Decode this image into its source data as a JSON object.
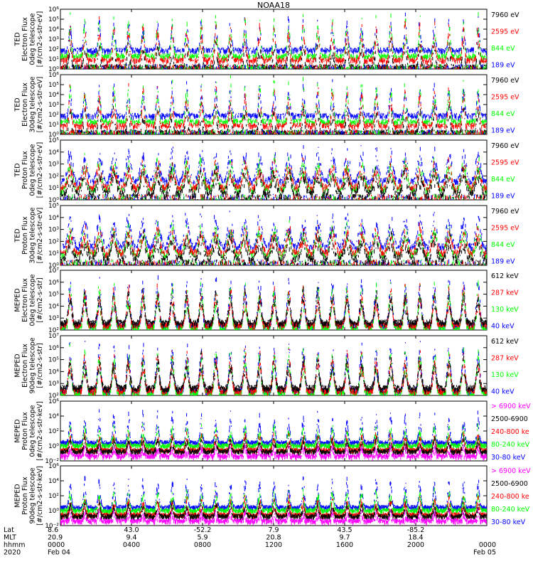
{
  "title": "NOAA18",
  "colors": {
    "black": "#000000",
    "blue": "#0000ff",
    "red": "#ff0000",
    "green": "#00ff00",
    "magenta": "#ff00ff"
  },
  "chart_data": {
    "type": "line",
    "x_start": "2020 Feb 04 0000",
    "x_end": "2020 Feb 05 0000",
    "x_unit": "hours",
    "xlim": [
      0,
      24
    ],
    "panels": [
      {
        "ylabel_lines": [
          "TED",
          "Electron Flux",
          "0deg telescope",
          "[#/cm2-s-str-eV]"
        ],
        "ylim_exp": [
          0,
          6
        ],
        "tick_labels": [
          "10⁰",
          "10¹",
          "10²",
          "10³",
          "10⁴",
          "10⁵",
          "10⁶"
        ],
        "legend": [
          {
            "label": "7960 eV",
            "color": "#000000"
          },
          {
            "label": "2595 eV",
            "color": "#ff0000"
          },
          {
            "label": "844 eV",
            "color": "#00ff00"
          },
          {
            "label": "189 eV",
            "color": "#0000ff"
          }
        ]
      },
      {
        "ylabel_lines": [
          "TED",
          "Electron Flux",
          "30deg telescope",
          "[#/cm2-s-str-eV]"
        ],
        "ylim_exp": [
          0,
          6
        ],
        "tick_labels": [
          "10⁰",
          "10¹",
          "10²",
          "10³",
          "10⁴",
          "10⁵",
          "10⁶"
        ],
        "legend": [
          {
            "label": "7960 eV",
            "color": "#000000"
          },
          {
            "label": "2595 eV",
            "color": "#ff0000"
          },
          {
            "label": "844 eV",
            "color": "#00ff00"
          },
          {
            "label": "189 eV",
            "color": "#0000ff"
          }
        ]
      },
      {
        "ylabel_lines": [
          "TED",
          "Proton Flux",
          "0deg telescope",
          "[#/cm2-s-str-eV]"
        ],
        "ylim_exp": [
          0,
          5
        ],
        "tick_labels": [
          "10⁰",
          "10¹",
          "10²",
          "10³",
          "10⁴",
          "10⁵"
        ],
        "legend": [
          {
            "label": "7960 eV",
            "color": "#000000"
          },
          {
            "label": "2595 eV",
            "color": "#ff0000"
          },
          {
            "label": "844 eV",
            "color": "#00ff00"
          },
          {
            "label": "189 eV",
            "color": "#0000ff"
          }
        ]
      },
      {
        "ylabel_lines": [
          "TED",
          "Proton Flux",
          "30deg telescope",
          "[#/cm2-s-str-eV]"
        ],
        "ylim_exp": [
          0,
          5
        ],
        "tick_labels": [
          "10⁰",
          "10¹",
          "10²",
          "10³",
          "10⁴",
          "10⁵"
        ],
        "legend": [
          {
            "label": "7960 eV",
            "color": "#000000"
          },
          {
            "label": "2595 eV",
            "color": "#ff0000"
          },
          {
            "label": "844 eV",
            "color": "#00ff00"
          },
          {
            "label": "189 eV",
            "color": "#0000ff"
          }
        ]
      },
      {
        "ylabel_lines": [
          "MEPED",
          "Electron Flux",
          "0deg telescope",
          "[#/cm2-s-str]"
        ],
        "ylim_exp": [
          2,
          7
        ],
        "tick_labels": [
          "10²",
          "10³",
          "10⁴",
          "10⁵",
          "10⁶",
          "10⁷"
        ],
        "legend": [
          {
            "label": "612 keV",
            "color": "#000000"
          },
          {
            "label": "287 keV",
            "color": "#ff0000"
          },
          {
            "label": "130 keV",
            "color": "#00ff00"
          },
          {
            "label": "40 keV",
            "color": "#0000ff"
          }
        ]
      },
      {
        "ylabel_lines": [
          "MEPED",
          "Electron Flux",
          "90deg telescope",
          "[#/cm2-s-str]"
        ],
        "ylim_exp": [
          2,
          7
        ],
        "tick_labels": [
          "10²",
          "10³",
          "10⁴",
          "10⁵",
          "10⁶",
          "10⁷"
        ],
        "legend": [
          {
            "label": "612 keV",
            "color": "#000000"
          },
          {
            "label": "287 keV",
            "color": "#ff0000"
          },
          {
            "label": "130 keV",
            "color": "#00ff00"
          },
          {
            "label": "40 keV",
            "color": "#0000ff"
          }
        ]
      },
      {
        "ylabel_lines": [
          "MEPED",
          "Proton Flux",
          "0deg telescope",
          "[#/cm2-s-str-keV]"
        ],
        "ylim_exp": [
          -2,
          6
        ],
        "tick_labels": [
          "10⁻²",
          "10⁰",
          "10²",
          "10⁴",
          "10⁶"
        ],
        "legend": [
          {
            "label": "> 6900 keV",
            "color": "#ff00ff"
          },
          {
            "label": "2500-6900",
            "color": "#000000"
          },
          {
            "label": "240-800 ke",
            "color": "#ff0000"
          },
          {
            "label": "80-240 keV",
            "color": "#00ff00"
          },
          {
            "label": "30-80 keV",
            "color": "#0000ff"
          }
        ]
      },
      {
        "ylabel_lines": [
          "MEPED",
          "Proton Flux",
          "90deg telescope",
          "[#/cm2-s-str-keV]"
        ],
        "ylim_exp": [
          -2,
          6
        ],
        "tick_labels": [
          "10⁻²",
          "10⁰",
          "10²",
          "10⁴",
          "10⁶"
        ],
        "legend": [
          {
            "label": "> 6900 keV",
            "color": "#ff00ff"
          },
          {
            "label": "2500-6900",
            "color": "#000000"
          },
          {
            "label": "240-800 ke",
            "color": "#ff0000"
          },
          {
            "label": "80-240 keV",
            "color": "#00ff00"
          },
          {
            "label": "30-80 keV",
            "color": "#0000ff"
          }
        ]
      }
    ],
    "footer": {
      "row_labels": [
        "Lat",
        "MLT",
        "hhmm",
        "2020"
      ],
      "columns": [
        {
          "lat": "8.6",
          "mlt": "20.9",
          "hhmm": "0000",
          "date": "Feb 04"
        },
        {
          "lat": "43.0",
          "mlt": "9.4",
          "hhmm": "0400",
          "date": ""
        },
        {
          "lat": "-52.2",
          "mlt": "5.9",
          "hhmm": "0800",
          "date": ""
        },
        {
          "lat": "7.9",
          "mlt": "20.8",
          "hhmm": "1200",
          "date": ""
        },
        {
          "lat": "43.5",
          "mlt": "9.7",
          "hhmm": "1600",
          "date": ""
        },
        {
          "lat": "-85.2",
          "mlt": "18.4",
          "hhmm": "2000",
          "date": ""
        },
        {
          "lat": "",
          "mlt": "",
          "hhmm": "0000",
          "date": "Feb 05"
        }
      ]
    }
  }
}
